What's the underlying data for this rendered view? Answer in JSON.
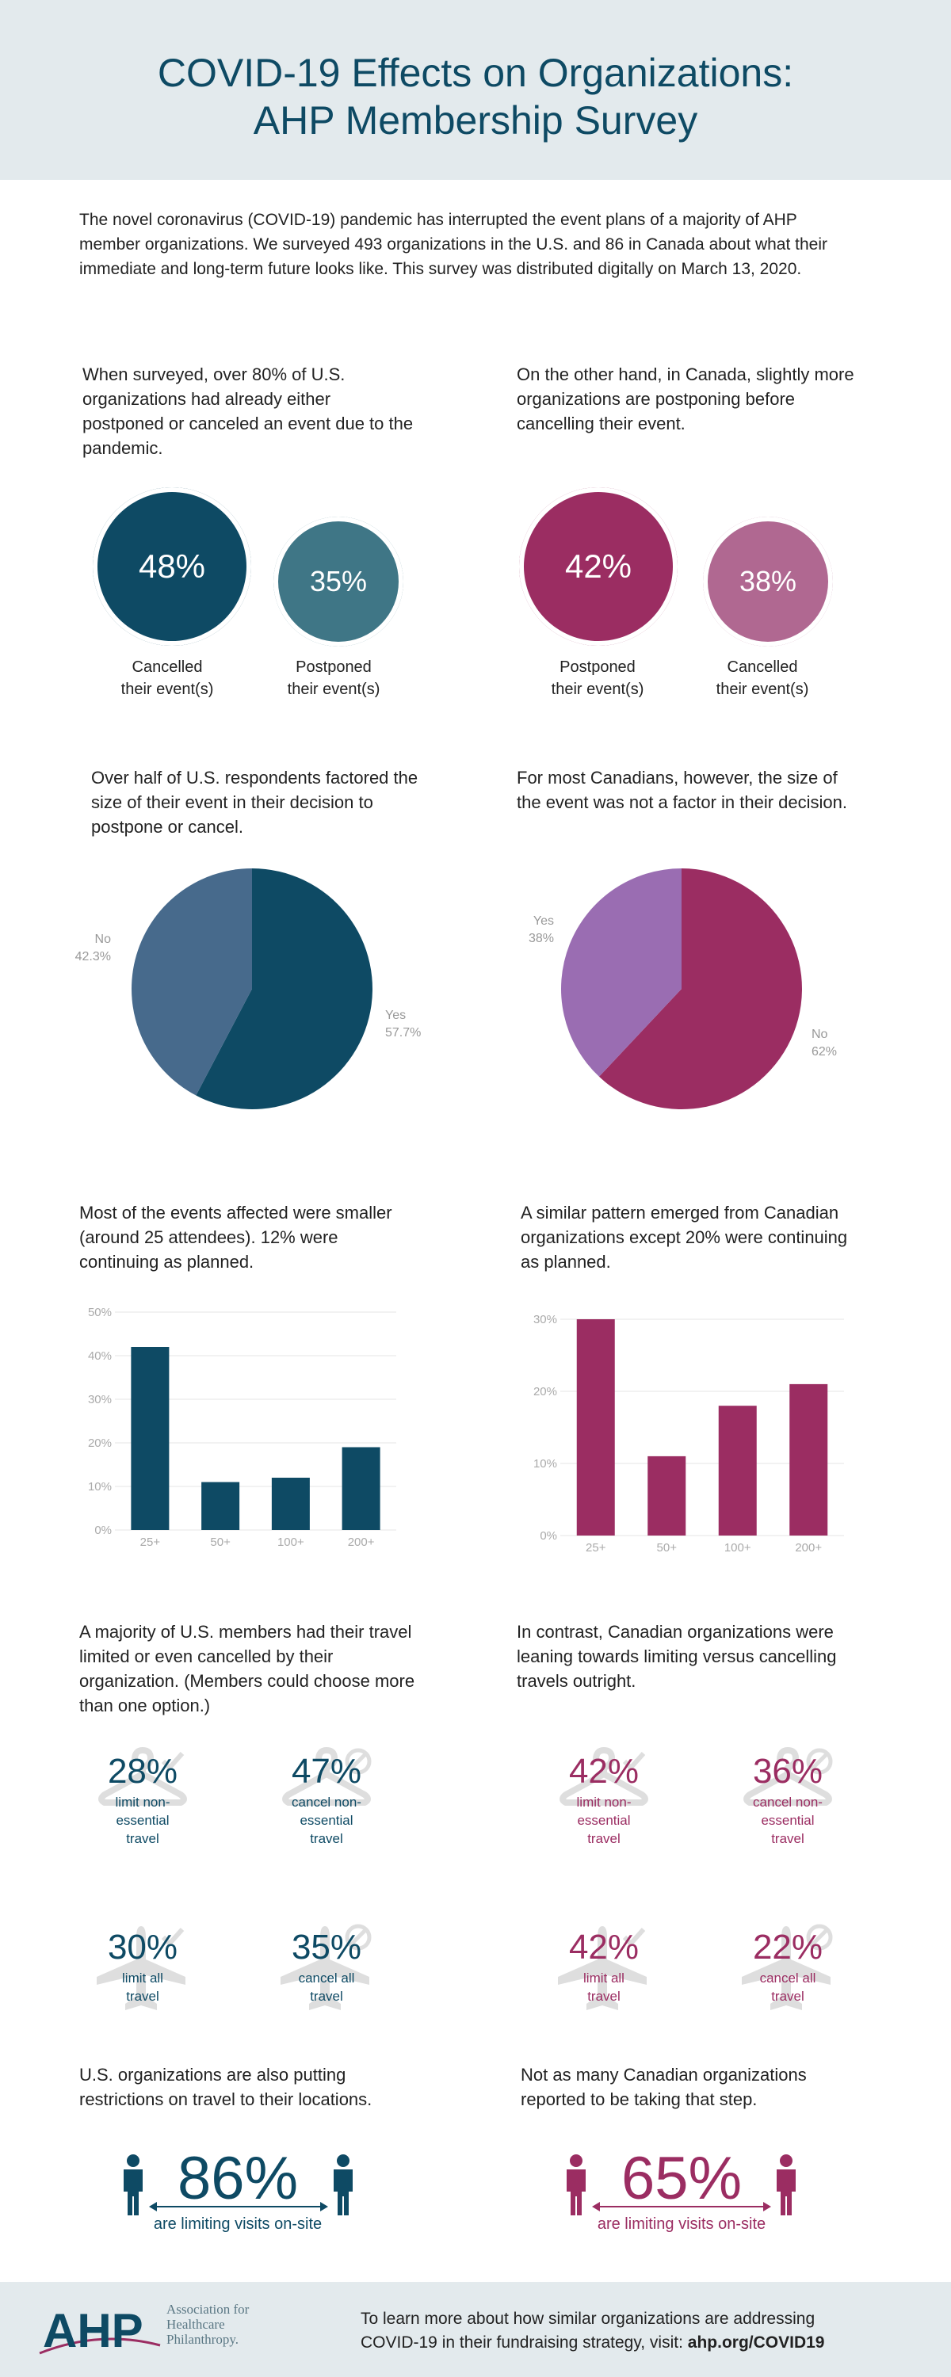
{
  "header": {
    "title_line1": "COVID-19 Effects on Organizations:",
    "title_line2": "AHP Membership Survey"
  },
  "intro": "The novel coronavirus (COVID-19) pandemic has interrupted the event plans of a majority of AHP member organizations. We surveyed 493 organizations in the U.S. and 86 in Canada about what their immediate and long-term future looks like. This survey was distributed digitally on March 13, 2020.",
  "section1": {
    "us_text": "When surveyed, over 80% of U.S. organizations had already either postponed or canceled an event due to the pandemic.",
    "ca_text": "On the other hand, in Canada, slightly more organizations are postponing before cancelling their event.",
    "us_circles": [
      {
        "value": "48%",
        "label1": "Cancelled",
        "label2": "their event(s)",
        "color": "#0e4a64"
      },
      {
        "value": "35%",
        "label1": "Postponed",
        "label2": "their event(s)",
        "color": "#3f7686"
      }
    ],
    "ca_circles": [
      {
        "value": "42%",
        "label1": "Postponed",
        "label2": "their event(s)",
        "color": "#9b2d62"
      },
      {
        "value": "38%",
        "label1": "Cancelled",
        "label2": "their event(s)",
        "color": "#b06891"
      }
    ]
  },
  "section2": {
    "us_text": "Over half of U.S. respondents factored the size of their event in their decision to postpone or cancel.",
    "ca_text": "For most Canadians, however, the size of the event was not a factor in their decision."
  },
  "section3": {
    "us_text": "Most of the events affected were smaller (around 25 attendees). 12% were continuing as planned.",
    "ca_text": "A similar pattern emerged from Canadian organizations except 20% were continuing as planned."
  },
  "section4": {
    "us_text": "A majority of U.S. members had their travel limited or even cancelled by their organization. (Members could choose more than one option.)",
    "ca_text": "In contrast, Canadian organizations were leaning towards limiting versus cancelling travels outright.",
    "us_items": [
      {
        "pct": "28%",
        "l1": "limit non-",
        "l2": "essential",
        "l3": "travel",
        "icon": "hanger-check-icon"
      },
      {
        "pct": "47%",
        "l1": "cancel non-",
        "l2": "essential",
        "l3": "travel",
        "icon": "hanger-cancel-icon"
      },
      {
        "pct": "30%",
        "l1": "limit all",
        "l2": "travel",
        "l3": "",
        "icon": "plane-check-icon"
      },
      {
        "pct": "35%",
        "l1": "cancel all",
        "l2": "travel",
        "l3": "",
        "icon": "plane-cancel-icon"
      }
    ],
    "ca_items": [
      {
        "pct": "42%",
        "l1": "limit non-",
        "l2": "essential",
        "l3": "travel",
        "icon": "hanger-check-icon"
      },
      {
        "pct": "36%",
        "l1": "cancel non-",
        "l2": "essential",
        "l3": "travel",
        "icon": "hanger-cancel-icon"
      },
      {
        "pct": "42%",
        "l1": "limit all",
        "l2": "travel",
        "l3": "",
        "icon": "plane-check-icon"
      },
      {
        "pct": "22%",
        "l1": "cancel all",
        "l2": "travel",
        "l3": "",
        "icon": "plane-cancel-icon"
      }
    ]
  },
  "section5": {
    "us_text": "U.S. organizations are also putting restrictions on travel to their locations.",
    "ca_text": "Not as many Canadian organizations reported to be taking that step.",
    "us_pct": "86%",
    "ca_pct": "65%",
    "caption": "are limiting visits on-site"
  },
  "footer": {
    "logo": "AHP",
    "org1": "Association for",
    "org2": "Healthcare",
    "org3": "Philanthropy.",
    "text1": "To learn more about how similar organizations are addressing",
    "text2": "COVID-19 in their fundraising strategy, visit: ",
    "link": "ahp.org/COVID19"
  },
  "colors": {
    "us_primary": "#0e4a64",
    "us_secondary": "#476a8c",
    "ca_primary": "#9b2d62",
    "ca_secondary": "#9a6db2",
    "icon_gray": "#dedede"
  },
  "chart_data": [
    {
      "type": "pie",
      "id": "us_pie",
      "slices": [
        {
          "label": "Yes",
          "value": 57.7,
          "display": "57.7%",
          "color": "#0e4a64"
        },
        {
          "label": "No",
          "value": 42.3,
          "display": "42.3%",
          "color": "#476a8c"
        }
      ]
    },
    {
      "type": "pie",
      "id": "ca_pie",
      "slices": [
        {
          "label": "No",
          "value": 62,
          "display": "62%",
          "color": "#9b2d62"
        },
        {
          "label": "Yes",
          "value": 38,
          "display": "38%",
          "color": "#9a6db2"
        }
      ]
    },
    {
      "type": "bar",
      "id": "us_bar",
      "categories": [
        "25+",
        "50+",
        "100+",
        "200+"
      ],
      "values": [
        42,
        11,
        12,
        19
      ],
      "ylim": [
        0,
        50
      ],
      "yticks": [
        "0%",
        "10%",
        "20%",
        "30%",
        "40%",
        "50%"
      ],
      "grid": true,
      "color": "#0e4a64"
    },
    {
      "type": "bar",
      "id": "ca_bar",
      "categories": [
        "25+",
        "50+",
        "100+",
        "200+"
      ],
      "values": [
        30,
        11,
        18,
        21
      ],
      "ylim": [
        0,
        30
      ],
      "yticks": [
        "0%",
        "10%",
        "20%",
        "30%"
      ],
      "grid": true,
      "color": "#9b2d62"
    }
  ]
}
